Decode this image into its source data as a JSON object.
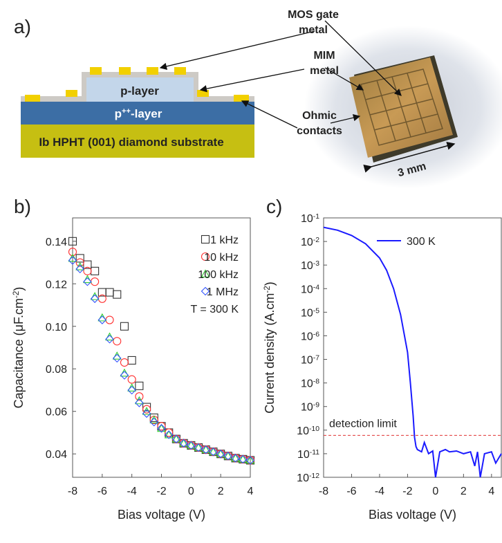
{
  "panel_labels": [
    "a)",
    "b)",
    "c)"
  ],
  "diagram": {
    "p_layer": "p-layer",
    "pplus_layer": [
      "p",
      "++",
      "-layer"
    ],
    "substrate": "Ib HPHT (001) diamond substrate",
    "callouts": [
      [
        "MOS gate",
        "metal"
      ],
      [
        "MIM",
        "metal"
      ],
      [
        "Ohmic",
        "contacts"
      ]
    ],
    "scale": "3 mm"
  },
  "chart_data": [
    {
      "type": "scatter",
      "x_label": "Bias voltage (V)",
      "y_label": [
        "Capacitance (μF.cm",
        "-2",
        ")"
      ],
      "annotation": "T = 300 K",
      "x": [
        -8,
        -7.5,
        -7,
        -6.5,
        -6,
        -5.5,
        -5,
        -4.5,
        -4,
        -3.5,
        -3,
        -2.5,
        -2,
        -1.5,
        -1,
        -0.5,
        0,
        0.5,
        1,
        1.5,
        2,
        2.5,
        3,
        3.5,
        4
      ],
      "series": [
        {
          "name": "1 kHz",
          "color": "#333333",
          "marker": "square",
          "values": [
            0.14,
            0.132,
            0.129,
            0.126,
            0.116,
            0.116,
            0.115,
            0.1,
            0.084,
            0.072,
            0.062,
            0.057,
            0.053,
            0.05,
            0.047,
            0.045,
            0.044,
            0.043,
            0.042,
            0.041,
            0.04,
            0.039,
            0.038,
            0.0375,
            0.037
          ]
        },
        {
          "name": "10 kHz",
          "color": "#ff3030",
          "marker": "circle",
          "values": [
            0.135,
            0.13,
            0.126,
            0.121,
            0.113,
            0.103,
            0.093,
            0.083,
            0.075,
            0.067,
            0.061,
            0.056,
            0.053,
            0.05,
            0.047,
            0.045,
            0.044,
            0.043,
            0.042,
            0.041,
            0.04,
            0.039,
            0.038,
            0.0375,
            0.037
          ]
        },
        {
          "name": "100 kHz",
          "color": "#2ecc2e",
          "marker": "triangle",
          "values": [
            0.132,
            0.128,
            0.122,
            0.114,
            0.104,
            0.095,
            0.086,
            0.078,
            0.071,
            0.065,
            0.06,
            0.056,
            0.052,
            0.049,
            0.047,
            0.045,
            0.044,
            0.043,
            0.042,
            0.041,
            0.04,
            0.039,
            0.038,
            0.0375,
            0.037
          ]
        },
        {
          "name": "1 MHz",
          "color": "#3355ff",
          "marker": "diamond",
          "values": [
            0.131,
            0.127,
            0.121,
            0.113,
            0.103,
            0.094,
            0.085,
            0.077,
            0.07,
            0.064,
            0.059,
            0.055,
            0.052,
            0.049,
            0.047,
            0.045,
            0.044,
            0.043,
            0.042,
            0.041,
            0.04,
            0.039,
            0.038,
            0.0375,
            0.037
          ]
        }
      ],
      "xlim": [
        -8,
        4
      ],
      "xticks": [
        -8,
        -6,
        -4,
        -2,
        0,
        2,
        4
      ],
      "ylim": [
        0.029,
        0.151
      ],
      "yticks": [
        0.04,
        0.06,
        0.08,
        {
          "value": 0.1,
          "label": "0.10"
        },
        0.12,
        0.14
      ]
    },
    {
      "type": "line",
      "log_y": true,
      "x_label": "Bias voltage (V)",
      "y_label": [
        "Current density (A.cm",
        "-2",
        ")"
      ],
      "x": [
        -8,
        -7,
        -6,
        -5,
        -4,
        -3.5,
        -3,
        -2.5,
        -2,
        -1.8,
        -1.6,
        -1.5,
        -1.4,
        -1.3,
        -1,
        -0.8,
        -0.5,
        -0.2,
        0,
        0.3,
        0.7,
        1,
        1.5,
        2,
        2.5,
        2.8,
        3,
        3.2,
        3.5,
        4,
        4.3,
        4.7
      ],
      "series": [
        {
          "name": "300 K",
          "color": "#1a1aff",
          "values": [
            0.04,
            0.03,
            0.018,
            0.008,
            0.002,
            0.0006,
            0.0001,
            8e-06,
            2e-07,
            1e-08,
            4e-10,
            5e-11,
            2e-11,
            1.5e-11,
            1.2e-11,
            3e-11,
            1e-11,
            1.3e-11,
            1e-12,
            1.2e-11,
            1.5e-11,
            1.2e-11,
            1.3e-11,
            1e-11,
            1.2e-11,
            3e-12,
            1.2e-11,
            1e-12,
            1e-11,
            1.2e-11,
            4e-12,
            1e-11
          ]
        }
      ],
      "detection_limit": {
        "value": 6e-11,
        "label": "detection limit",
        "color": "#e03030"
      },
      "xlim": [
        -8,
        4.7
      ],
      "xticks": [
        -8,
        -6,
        -4,
        -2,
        0,
        2,
        4
      ],
      "ylim": [
        1e-12,
        0.1
      ],
      "yticks": [
        {
          "value": 0.1,
          "label": "10",
          "exponent": "-1"
        },
        {
          "value": 0.01,
          "label": "10",
          "exponent": "-2"
        },
        {
          "value": 0.001,
          "label": "10",
          "exponent": "-3"
        },
        {
          "value": 0.0001,
          "label": "10",
          "exponent": "-4"
        },
        {
          "value": 1e-05,
          "label": "10",
          "exponent": "-5"
        },
        {
          "value": 1e-06,
          "label": "10",
          "exponent": "-6"
        },
        {
          "value": 1e-07,
          "label": "10",
          "exponent": "-7"
        },
        {
          "value": 1e-08,
          "label": "10",
          "exponent": "-8"
        },
        {
          "value": 1e-09,
          "label": "10",
          "exponent": "-9"
        },
        {
          "value": 1e-10,
          "label": "10",
          "exponent": "-10"
        },
        {
          "value": 1e-11,
          "label": "10",
          "exponent": "-11"
        },
        {
          "value": 1e-12,
          "label": "10",
          "exponent": "-12"
        }
      ]
    }
  ]
}
